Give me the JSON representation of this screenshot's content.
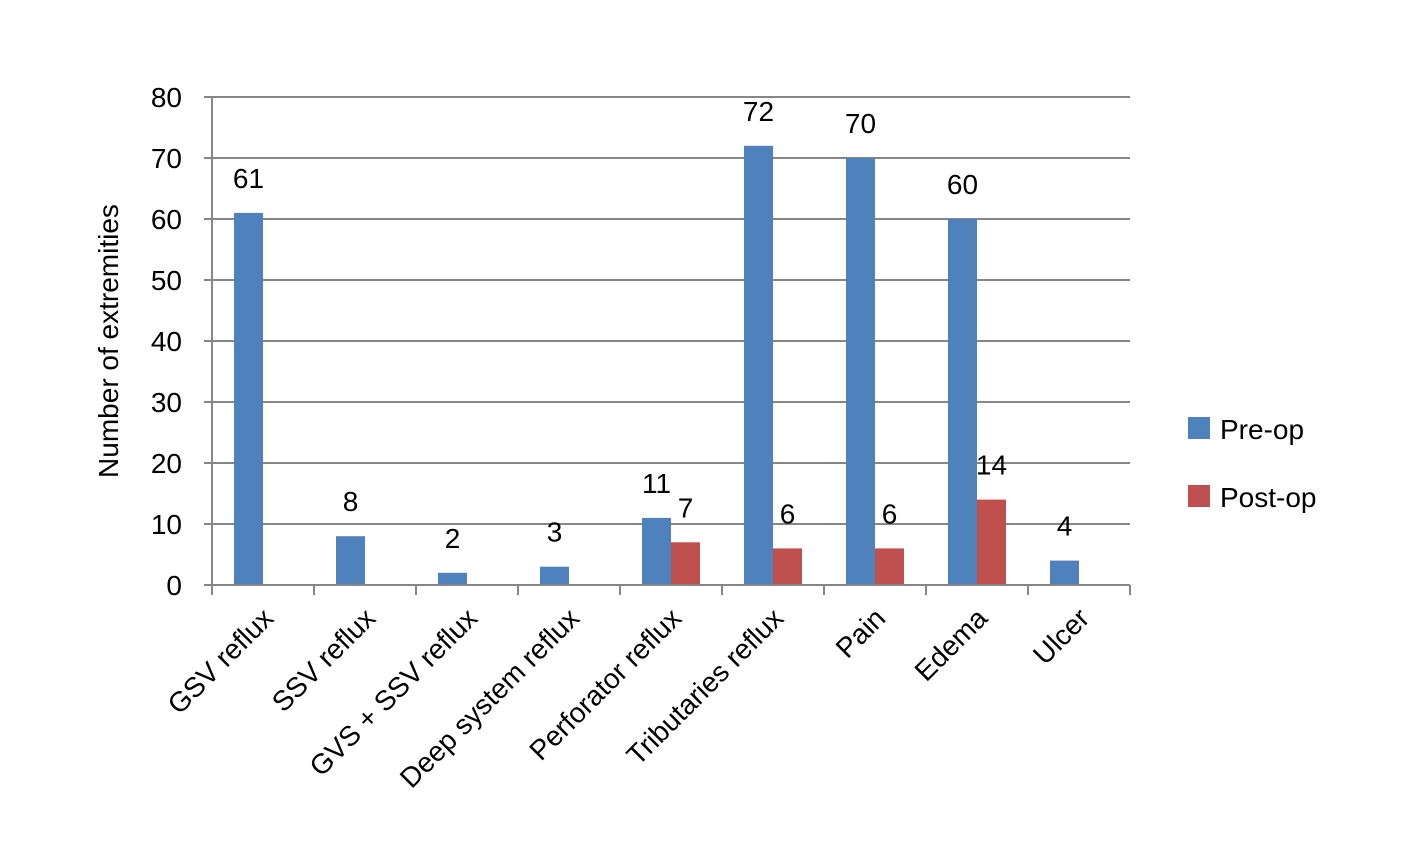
{
  "chart_data": {
    "type": "bar",
    "title": "",
    "xlabel": "",
    "ylabel": "Number of extremities",
    "ylim": [
      0,
      80
    ],
    "yticks": [
      0,
      10,
      20,
      30,
      40,
      50,
      60,
      70,
      80
    ],
    "grid": true,
    "legend_position": "right",
    "categories": [
      "GSV reflux",
      "SSV reflux",
      "GVS + SSV reflux",
      "Deep system reflux",
      "Perforator reflux",
      "Tributaries reflux",
      "Pain",
      "Edema",
      "Ulcer"
    ],
    "series": [
      {
        "name": "Pre-op",
        "color": "#4F81BD",
        "values": [
          61,
          8,
          2,
          3,
          11,
          72,
          70,
          60,
          4
        ],
        "labels": [
          "61",
          "8",
          "2",
          "3",
          "11",
          "72",
          "70",
          "60",
          "4"
        ]
      },
      {
        "name": "Post-op",
        "color": "#C0504D",
        "values": [
          null,
          null,
          null,
          null,
          7,
          6,
          6,
          14,
          null
        ],
        "labels": [
          "",
          "",
          "",
          "",
          "7",
          "6",
          "6",
          "14",
          ""
        ]
      }
    ]
  }
}
